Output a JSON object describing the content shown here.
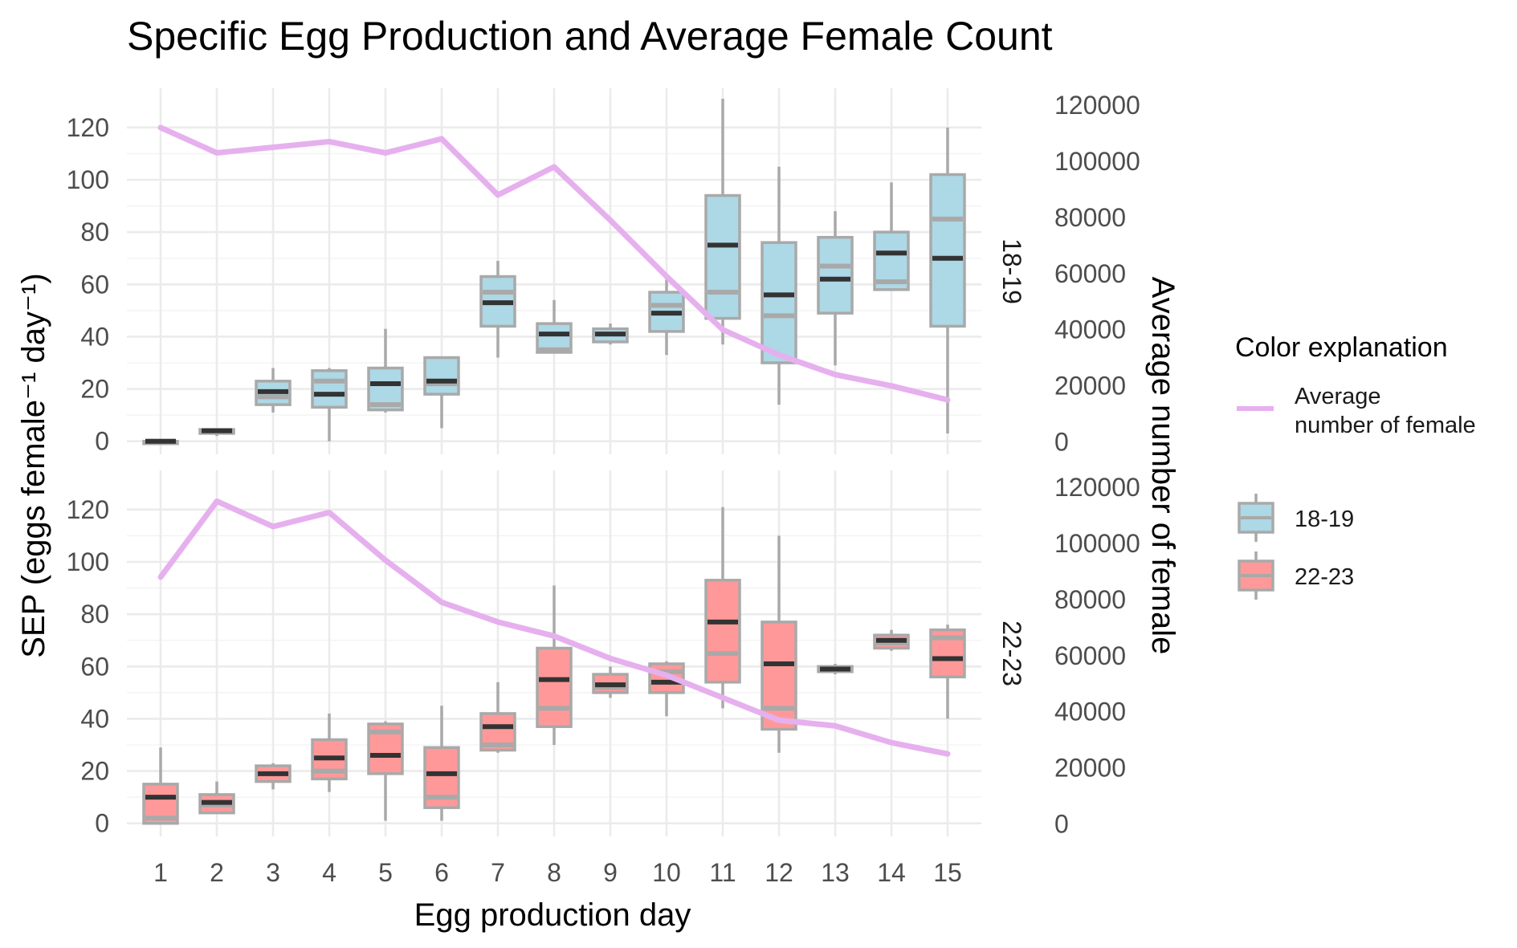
{
  "chart_data": {
    "type": "box",
    "title": "Specific Egg Production and Average Female Count",
    "xlabel": "Egg production day",
    "ylabel": "SEP (eggs female⁻¹ day⁻¹)",
    "y2label": "Average number of female",
    "categories": [
      "1",
      "2",
      "3",
      "4",
      "5",
      "6",
      "7",
      "8",
      "9",
      "10",
      "11",
      "12",
      "13",
      "14",
      "15"
    ],
    "ylim": [
      -5,
      135
    ],
    "y_ticks": [
      "0",
      "20",
      "40",
      "60",
      "80",
      "100",
      "120"
    ],
    "y2lim": [
      -4400,
      126000
    ],
    "y2_ticks": [
      "0",
      "20000",
      "40000",
      "60000",
      "80000",
      "100000",
      "120000"
    ],
    "grid": true,
    "legend_position": "right",
    "legend": {
      "title": "Color explanation",
      "line_label_1": "Average",
      "line_label_2": "number of female",
      "items": [
        {
          "label": "18-19",
          "color": "#add8e6"
        },
        {
          "label": "22-23",
          "color": "#ff9999"
        }
      ]
    },
    "colors": {
      "line": "#e6b0ee",
      "box_border": "#a9a9a9",
      "median": "#333333",
      "mean": "#a9a9a9"
    },
    "panels": [
      {
        "label": "18-19",
        "fill": "#add8e6",
        "boxes": [
          {
            "min": 0,
            "q1": 0,
            "median": 0,
            "q3": 0,
            "max": 0,
            "mean": 0
          },
          {
            "min": 2,
            "q1": 3,
            "median": 4,
            "q3": 4.5,
            "max": 5,
            "mean": 3.5
          },
          {
            "min": 11,
            "q1": 14,
            "median": 19,
            "q3": 23,
            "max": 28,
            "mean": 17
          },
          {
            "min": 0,
            "q1": 13,
            "median": 18,
            "q3": 27,
            "max": 28,
            "mean": 23
          },
          {
            "min": 11,
            "q1": 12,
            "median": 22,
            "q3": 28,
            "max": 43,
            "mean": 14
          },
          {
            "min": 5,
            "q1": 18,
            "median": 23,
            "q3": 32,
            "max": 32,
            "mean": 22
          },
          {
            "min": 32,
            "q1": 44,
            "median": 53,
            "q3": 63,
            "max": 69,
            "mean": 57
          },
          {
            "min": 34,
            "q1": 34,
            "median": 41,
            "q3": 45,
            "max": 54,
            "mean": 35
          },
          {
            "min": 37,
            "q1": 38,
            "median": 41,
            "q3": 43,
            "max": 45,
            "mean": 41
          },
          {
            "min": 33,
            "q1": 42,
            "median": 49,
            "q3": 57,
            "max": 62,
            "mean": 52
          },
          {
            "min": 37,
            "q1": 47,
            "median": 75,
            "q3": 94,
            "max": 131,
            "mean": 57
          },
          {
            "min": 14,
            "q1": 30,
            "median": 56,
            "q3": 76,
            "max": 105,
            "mean": 48
          },
          {
            "min": 29,
            "q1": 49,
            "median": 62,
            "q3": 78,
            "max": 88,
            "mean": 67
          },
          {
            "min": 58,
            "q1": 58,
            "median": 72,
            "q3": 80,
            "max": 99,
            "mean": 61
          },
          {
            "min": 3,
            "q1": 44,
            "median": 70,
            "q3": 102,
            "max": 120,
            "mean": 85
          }
        ],
        "avg_females": [
          112000,
          103000,
          105000,
          107000,
          103000,
          108000,
          88000,
          98000,
          79000,
          59000,
          40000,
          31000,
          24000,
          20000,
          15000
        ]
      },
      {
        "label": "22-23",
        "fill": "#ff9999",
        "boxes": [
          {
            "min": 0,
            "q1": 0,
            "median": 10,
            "q3": 15,
            "max": 29,
            "mean": 2
          },
          {
            "min": 4,
            "q1": 4,
            "median": 8,
            "q3": 11,
            "max": 16,
            "mean": 7
          },
          {
            "min": 13,
            "q1": 16,
            "median": 19,
            "q3": 22,
            "max": 23,
            "mean": 19
          },
          {
            "min": 12,
            "q1": 17,
            "median": 25,
            "q3": 32,
            "max": 42,
            "mean": 20
          },
          {
            "min": 1,
            "q1": 19,
            "median": 26,
            "q3": 38,
            "max": 39,
            "mean": 35
          },
          {
            "min": 1,
            "q1": 6,
            "median": 19,
            "q3": 29,
            "max": 45,
            "mean": 10
          },
          {
            "min": 27,
            "q1": 28,
            "median": 37,
            "q3": 42,
            "max": 54,
            "mean": 30
          },
          {
            "min": 30,
            "q1": 37,
            "median": 55,
            "q3": 67,
            "max": 91,
            "mean": 44
          },
          {
            "min": 48,
            "q1": 50,
            "median": 53,
            "q3": 57,
            "max": 60,
            "mean": 52
          },
          {
            "min": 41,
            "q1": 50,
            "median": 54,
            "q3": 61,
            "max": 62,
            "mean": 58
          },
          {
            "min": 44,
            "q1": 54,
            "median": 77,
            "q3": 93,
            "max": 121,
            "mean": 65
          },
          {
            "min": 27,
            "q1": 36,
            "median": 61,
            "q3": 77,
            "max": 110,
            "mean": 44
          },
          {
            "min": 57,
            "q1": 58,
            "median": 59,
            "q3": 60,
            "max": 61,
            "mean": 58.5
          },
          {
            "min": 66,
            "q1": 67,
            "median": 70,
            "q3": 72,
            "max": 74,
            "mean": 69
          },
          {
            "min": 40,
            "q1": 56,
            "median": 63,
            "q3": 74,
            "max": 76,
            "mean": 71
          }
        ],
        "avg_females": [
          88000,
          115000,
          106000,
          111000,
          94000,
          79000,
          72000,
          67000,
          59000,
          53000,
          45000,
          37000,
          35000,
          29000,
          25000
        ]
      }
    ]
  }
}
